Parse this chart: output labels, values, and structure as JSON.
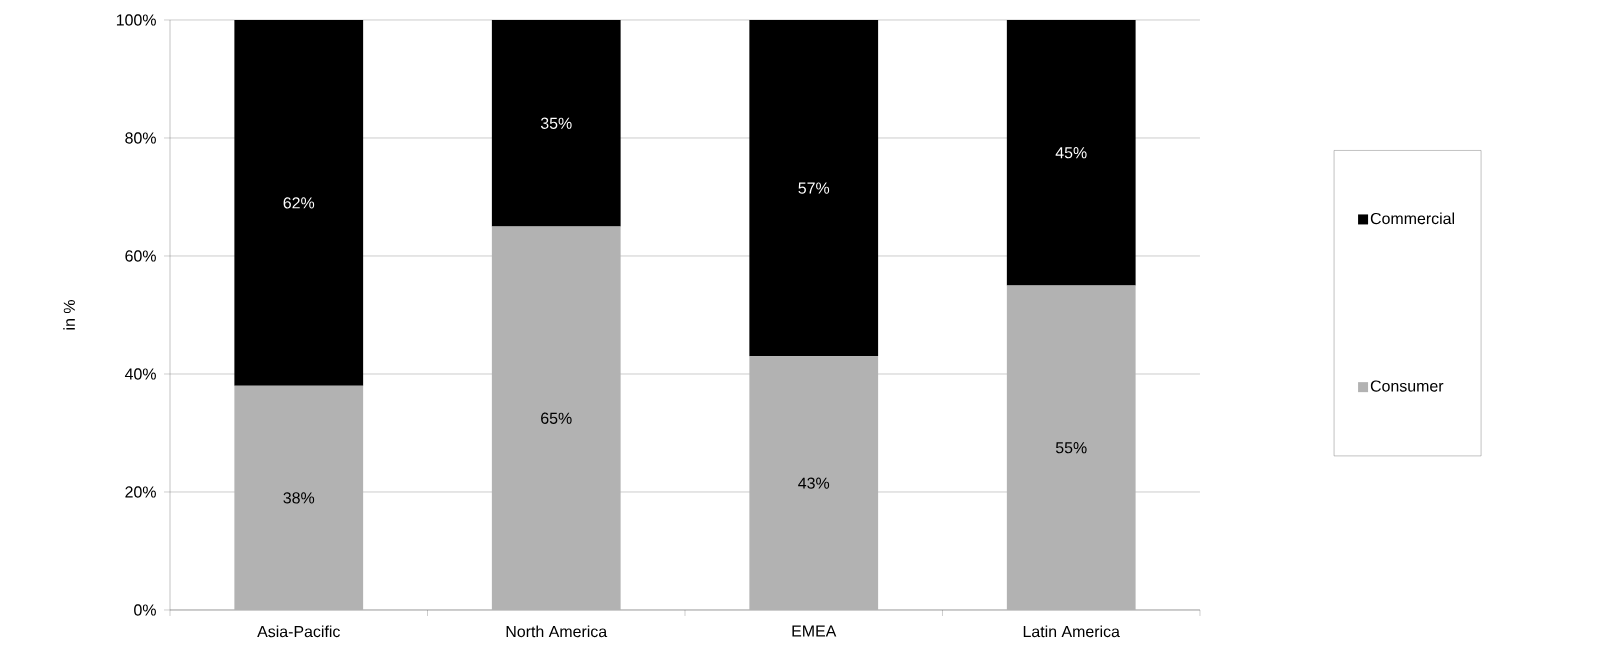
{
  "chart_data": {
    "type": "bar",
    "stacked": true,
    "ylabel": "in %",
    "categories": [
      "Asia-Pacific",
      "North America",
      "EMEA",
      "Latin America"
    ],
    "series": [
      {
        "name": "Consumer",
        "color": "#b2b2b2",
        "values": [
          38,
          65,
          43,
          55
        ],
        "value_labels": [
          "38%",
          "65%",
          "43%",
          "55%"
        ]
      },
      {
        "name": "Commercial",
        "color": "#000000",
        "values": [
          62,
          35,
          57,
          45
        ],
        "value_labels": [
          "62%",
          "35%",
          "57%",
          "45%"
        ]
      }
    ],
    "ylim": [
      0,
      100
    ],
    "yticks": [
      {
        "value": 0,
        "label": "0%"
      },
      {
        "value": 20,
        "label": "20%"
      },
      {
        "value": 40,
        "label": "40%"
      },
      {
        "value": 60,
        "label": "60%"
      },
      {
        "value": 80,
        "label": "80%"
      },
      {
        "value": 100,
        "label": "100%"
      }
    ],
    "grid": true,
    "legend": "right"
  }
}
